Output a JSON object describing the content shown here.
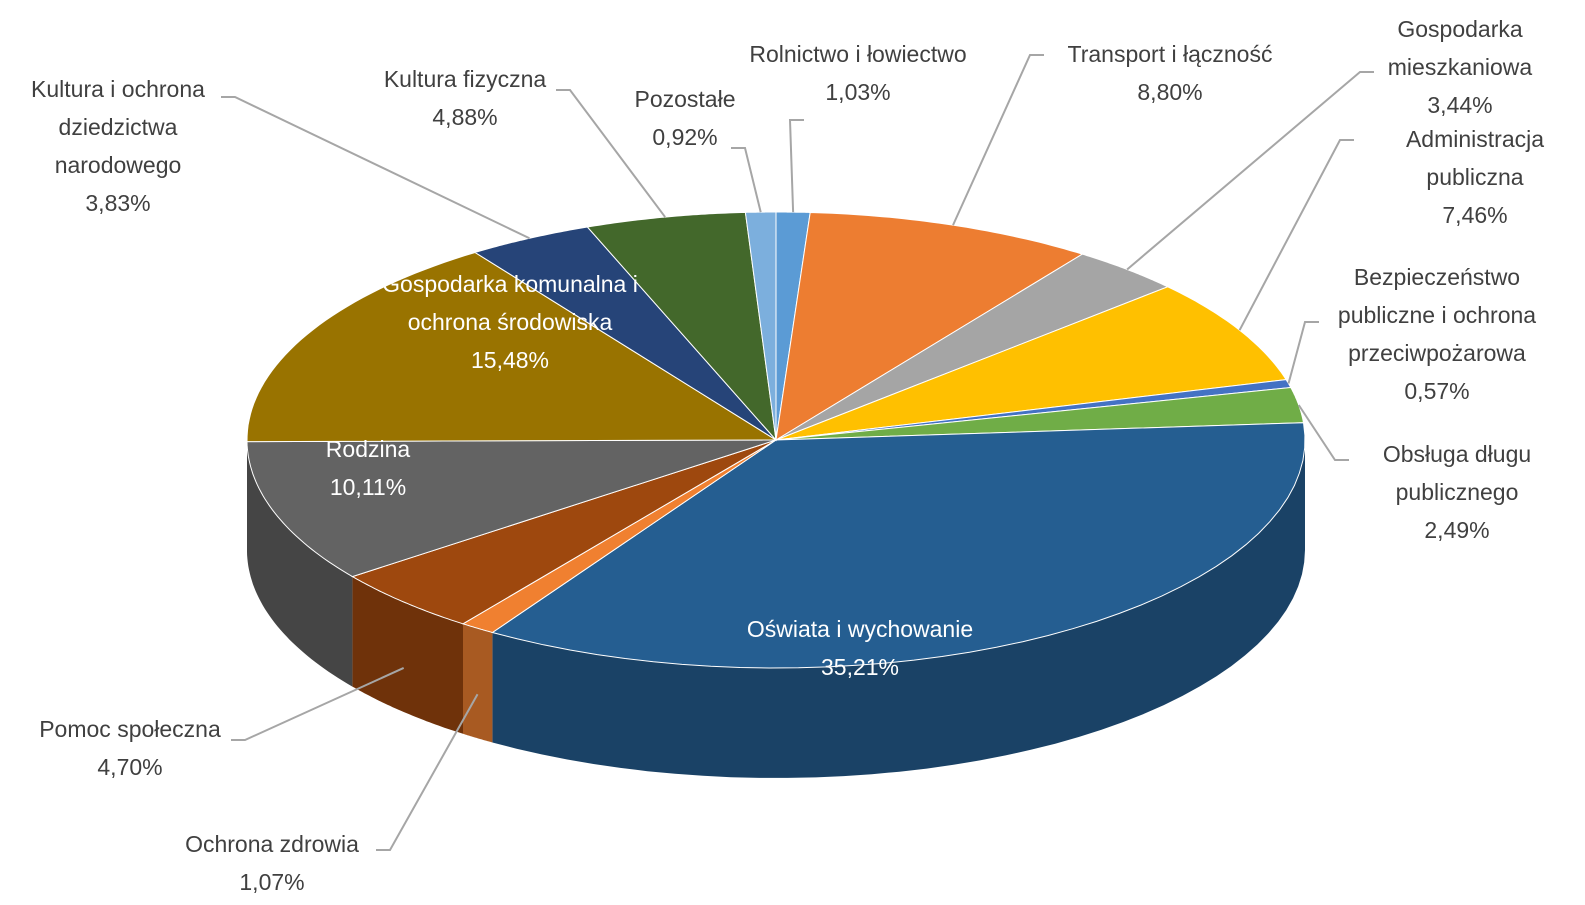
{
  "chart_data": {
    "type": "pie3d",
    "categories": [
      "Rolnictwo i łowiectwo",
      "Transport i łączność",
      "Gospodarka mieszkaniowa",
      "Administracja publiczna",
      "Bezpieczeństwo publiczne i ochrona przeciwpożarowa",
      "Obsługa długu publicznego",
      "Oświata i wychowanie",
      "Ochrona zdrowia",
      "Pomoc społeczna",
      "Rodzina",
      "Gospodarka komunalna i ochrona środowiska",
      "Kultura i ochrona dziedzictwa narodowego",
      "Kultura fizyczna",
      "Pozostałe"
    ],
    "values": [
      1.03,
      8.8,
      3.44,
      7.46,
      0.57,
      2.49,
      35.21,
      1.07,
      4.7,
      10.11,
      15.48,
      3.83,
      4.88,
      0.92
    ],
    "value_labels": [
      "1,03%",
      "8,80%",
      "3,44%",
      "7,46%",
      "0,57%",
      "2,49%",
      "35,21%",
      "1,07%",
      "4,70%",
      "10,11%",
      "15,48%",
      "3,83%",
      "4,88%",
      "0,92%"
    ],
    "colors": [
      "#5b9bd5",
      "#ed7d31",
      "#a5a5a5",
      "#ffc000",
      "#4472c4",
      "#70ad47",
      "#255e91",
      "#f08030",
      "#9e480e",
      "#636363",
      "#997300",
      "#264478",
      "#43682b",
      "#7cafdd"
    ]
  }
}
